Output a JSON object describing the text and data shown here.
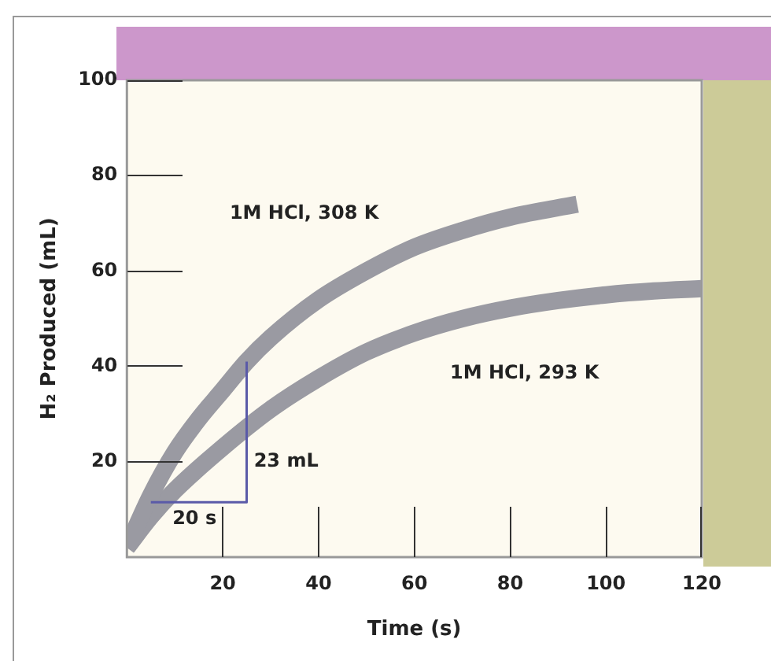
{
  "chart_data": {
    "type": "line",
    "xlabel": "Time (s)",
    "ylabel": "H₂ Produced (mL)",
    "xlim": [
      0,
      120
    ],
    "ylim": [
      0,
      100
    ],
    "xticks": [
      20,
      40,
      60,
      80,
      100,
      120
    ],
    "yticks": [
      20,
      40,
      60,
      80,
      100
    ],
    "grid": false,
    "legend": false,
    "marker": "none",
    "series": [
      {
        "name": "1M HCl, 308 K",
        "color": "#9a9aa2",
        "x": [
          0,
          5,
          10,
          15,
          20,
          25,
          30,
          40,
          50,
          60,
          70,
          80,
          94
        ],
        "values": [
          2,
          13,
          22,
          29,
          35,
          41,
          46,
          54,
          60,
          65,
          68.5,
          71.3,
          74
        ]
      },
      {
        "name": "1M HCl, 293 K",
        "color": "#9a9aa2",
        "x": [
          0,
          5,
          10,
          20,
          30,
          40,
          50,
          60,
          70,
          80,
          90,
          100,
          110,
          120
        ],
        "values": [
          2,
          8.5,
          14,
          23,
          31,
          37.5,
          43,
          47,
          50,
          52.2,
          53.8,
          55,
          55.8,
          56.3
        ]
      },
      {
        "type": "line",
        "color": "#5a5aa8",
        "x": [
          5,
          25,
          25
        ],
        "values": [
          11.5,
          11.5,
          41
        ]
      }
    ],
    "annotations": [
      "20 s",
      "23 mL"
    ]
  }
}
